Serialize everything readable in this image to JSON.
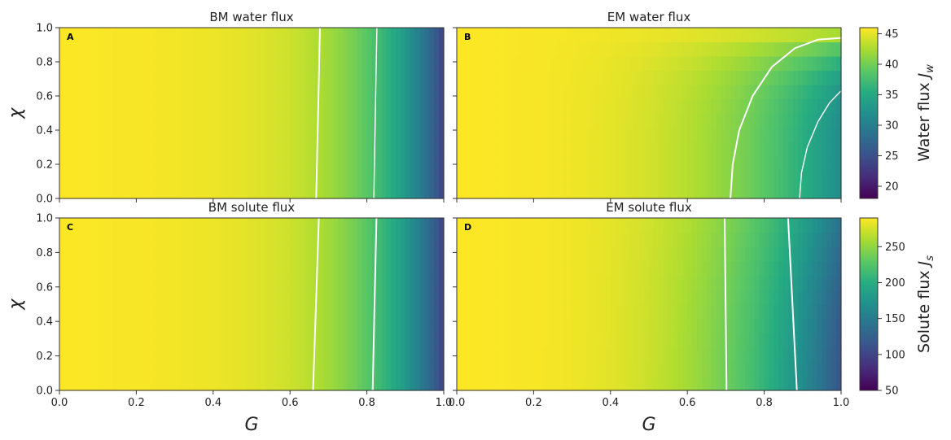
{
  "colormap": "viridis",
  "contour_color": "#ffffff",
  "chart_data": [
    {
      "type": "heatmap",
      "panel": "A",
      "title": "BM water flux",
      "xlabel": "",
      "ylabel": "χ",
      "xlim": [
        0.0,
        1.0
      ],
      "ylim": [
        0.0,
        1.0
      ],
      "x_ticks": [
        "0.0",
        "0.2",
        "0.4",
        "0.6",
        "0.8",
        "1.0"
      ],
      "y_ticks": [
        "0.0",
        "0.2",
        "0.4",
        "0.6",
        "0.8",
        "1.0"
      ],
      "show_x_ticklabels": false,
      "colorbar": "water",
      "field": "bm",
      "vlim": [
        18,
        46
      ],
      "contours": [
        {
          "level": 40,
          "x_at_y0": 0.668,
          "x_at_y1": 0.678
        },
        {
          "level": 30,
          "x_at_y0": 0.818,
          "x_at_y1": 0.826
        }
      ]
    },
    {
      "type": "heatmap",
      "panel": "B",
      "title": "EM water flux",
      "xlabel": "",
      "ylabel": "",
      "xlim": [
        0.0,
        1.0
      ],
      "ylim": [
        0.0,
        1.0
      ],
      "x_ticks": [
        "0.0",
        "0.2",
        "0.4",
        "0.6",
        "0.8",
        "1.0"
      ],
      "y_ticks": [
        "0.0",
        "0.2",
        "0.4",
        "0.6",
        "0.8",
        "1.0"
      ],
      "show_x_ticklabels": false,
      "show_y_ticklabels": false,
      "colorbar": "water",
      "field": "em_water",
      "vlim": [
        18,
        46
      ],
      "contours": [
        {
          "level": 40,
          "points": [
            [
              0.712,
              0.0
            ],
            [
              0.718,
              0.2
            ],
            [
              0.735,
              0.4
            ],
            [
              0.77,
              0.6
            ],
            [
              0.82,
              0.77
            ],
            [
              0.88,
              0.88
            ],
            [
              0.94,
              0.93
            ],
            [
              1.0,
              0.94
            ]
          ]
        },
        {
          "level": 30,
          "points": [
            [
              0.892,
              0.0
            ],
            [
              0.897,
              0.15
            ],
            [
              0.912,
              0.3
            ],
            [
              0.94,
              0.45
            ],
            [
              0.97,
              0.56
            ],
            [
              1.0,
              0.63
            ]
          ]
        }
      ]
    },
    {
      "type": "heatmap",
      "panel": "C",
      "title": "BM solute flux",
      "xlabel": "G",
      "ylabel": "χ",
      "xlim": [
        0.0,
        1.0
      ],
      "ylim": [
        0.0,
        1.0
      ],
      "x_ticks": [
        "0.0",
        "0.2",
        "0.4",
        "0.6",
        "0.8",
        "1.0"
      ],
      "y_ticks": [
        "0.0",
        "0.2",
        "0.4",
        "0.6",
        "0.8",
        "1.0"
      ],
      "colorbar": "solute",
      "field": "bm",
      "vlim": [
        50,
        290
      ],
      "contours": [
        {
          "level": 250,
          "x_at_y0": 0.66,
          "x_at_y1": 0.675
        },
        {
          "level": 150,
          "x_at_y0": 0.815,
          "x_at_y1": 0.825
        }
      ]
    },
    {
      "type": "heatmap",
      "panel": "D",
      "title": "EM solute flux",
      "xlabel": "G",
      "ylabel": "",
      "xlim": [
        0.0,
        1.0
      ],
      "ylim": [
        0.0,
        1.0
      ],
      "x_ticks": [
        "0.0",
        "0.2",
        "0.4",
        "0.6",
        "0.8",
        "1.0"
      ],
      "y_ticks": [
        "0.0",
        "0.2",
        "0.4",
        "0.6",
        "0.8",
        "1.0"
      ],
      "show_y_ticklabels": false,
      "colorbar": "solute",
      "field": "em_solute",
      "vlim": [
        50,
        290
      ],
      "contours": [
        {
          "level": 250,
          "x_at_y0": 0.702,
          "x_at_y1": 0.697
        },
        {
          "level": 150,
          "x_at_y0": 0.885,
          "x_at_y1": 0.862
        }
      ]
    }
  ],
  "colorbars": {
    "water": {
      "label": "Water flux ",
      "label_symbol": "J",
      "label_sub": "w",
      "vlim": [
        18,
        46
      ],
      "ticks": [
        "20",
        "25",
        "30",
        "35",
        "40",
        "45"
      ],
      "tick_values": [
        20,
        25,
        30,
        35,
        40,
        45
      ]
    },
    "solute": {
      "label": "Solute flux ",
      "label_symbol": "J",
      "label_sub": "s",
      "vlim": [
        50,
        290
      ],
      "ticks": [
        "50",
        "100",
        "150",
        "200",
        "250"
      ],
      "tick_values": [
        50,
        100,
        150,
        200,
        250
      ]
    }
  }
}
